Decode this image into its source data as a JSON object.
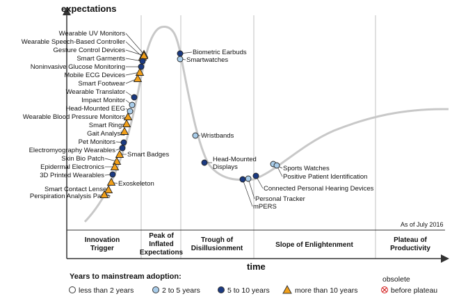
{
  "chart_data": {
    "type": "hype_cycle",
    "y_axis_label": "expectations",
    "x_axis_label": "time",
    "as_of": "As of July 2016",
    "phases": [
      {
        "lines": [
          "Innovation",
          "Trigger"
        ]
      },
      {
        "lines": [
          "Peak of",
          "Inflated",
          "Expectations"
        ]
      },
      {
        "lines": [
          "Trough of",
          "Disillusionment"
        ]
      },
      {
        "lines": [
          "Slope of Enlightenment"
        ]
      },
      {
        "lines": [
          "Plateau of",
          "Productivity"
        ]
      }
    ],
    "legend": {
      "title": "Years to mainstream adoption:",
      "items": [
        {
          "marker": "circle-white",
          "label": "less than 2 years"
        },
        {
          "marker": "circle-light",
          "label": "2 to 5 years"
        },
        {
          "marker": "circle-dark",
          "label": "5 to 10 years"
        },
        {
          "marker": "triangle",
          "label": "more than 10 years"
        },
        {
          "marker": "cross",
          "label": "obsolete",
          "label2": "before plateau"
        }
      ]
    },
    "colors": {
      "curve": "#c8c8c8",
      "circle_light": "#a9cdea",
      "circle_dark": "#1b3a82",
      "triangle": "#f2a01a",
      "cross": "#d42020",
      "axis": "#333333",
      "divider": "#c0c0c0"
    },
    "technologies": [
      {
        "name": "Wearable UV Monitors",
        "phase": "Innovation Trigger",
        "years": "more than 10 years",
        "marker": "triangle"
      },
      {
        "name": "Wearable Speech-Based Controller",
        "phase": "Innovation Trigger",
        "years": "more than 10 years",
        "marker": "triangle"
      },
      {
        "name": "Gesture Control Devices",
        "phase": "Innovation Trigger",
        "years": "more than 10 years",
        "marker": "triangle"
      },
      {
        "name": "Smart Garments",
        "phase": "Innovation Trigger",
        "years": "5 to 10 years",
        "marker": "circle-dark"
      },
      {
        "name": "Noninvasive Glucose Monitoring",
        "phase": "Innovation Trigger",
        "years": "5 to 10 years",
        "marker": "circle-dark"
      },
      {
        "name": "Mobile ECG Devices",
        "phase": "Innovation Trigger",
        "years": "more than 10 years",
        "marker": "triangle"
      },
      {
        "name": "Smart Footwear",
        "phase": "Innovation Trigger",
        "years": "more than 10 years",
        "marker": "triangle"
      },
      {
        "name": "Wearable Translator",
        "phase": "Innovation Trigger",
        "years": "5 to 10 years",
        "marker": "circle-dark"
      },
      {
        "name": "Impact Monitor",
        "phase": "Innovation Trigger",
        "years": "2 to 5 years",
        "marker": "circle-light"
      },
      {
        "name": "Head-Mounted EEG",
        "phase": "Innovation Trigger",
        "years": "2 to 5 years",
        "marker": "circle-light"
      },
      {
        "name": "Wearable Blood Pressure Monitors",
        "phase": "Innovation Trigger",
        "years": "more than 10 years",
        "marker": "triangle"
      },
      {
        "name": "Smart Rings",
        "phase": "Innovation Trigger",
        "years": "more than 10 years",
        "marker": "triangle"
      },
      {
        "name": "Gait Analysis",
        "phase": "Innovation Trigger",
        "years": "more than 10 years",
        "marker": "triangle"
      },
      {
        "name": "Pet Monitors",
        "phase": "Innovation Trigger",
        "years": "5 to 10 years",
        "marker": "circle-dark"
      },
      {
        "name": "Electromyography Wearables",
        "phase": "Innovation Trigger",
        "years": "5 to 10 years",
        "marker": "circle-dark"
      },
      {
        "name": "Smart Badges",
        "phase": "Innovation Trigger",
        "years": "more than 10 years",
        "marker": "triangle"
      },
      {
        "name": "Skin Bio Patch",
        "phase": "Innovation Trigger",
        "years": "more than 10 years",
        "marker": "triangle"
      },
      {
        "name": "Epidermal Electronics",
        "phase": "Innovation Trigger",
        "years": "more than 10 years",
        "marker": "triangle"
      },
      {
        "name": "3D Printed Wearables",
        "phase": "Innovation Trigger",
        "years": "5 to 10 years",
        "marker": "circle-dark"
      },
      {
        "name": "Exoskeleton",
        "phase": "Innovation Trigger",
        "years": "more than 10 years",
        "marker": "triangle"
      },
      {
        "name": "Smart Contact Lenses",
        "phase": "Innovation Trigger",
        "years": "more than 10 years",
        "marker": "triangle"
      },
      {
        "name": "Perspiration Analysis Patch",
        "phase": "Innovation Trigger",
        "years": "more than 10 years",
        "marker": "triangle"
      },
      {
        "name": "Biometric Earbuds",
        "phase": "Trough of Disillusionment",
        "years": "5 to 10 years",
        "marker": "circle-dark"
      },
      {
        "name": "Smartwatches",
        "phase": "Trough of Disillusionment",
        "years": "2 to 5 years",
        "marker": "circle-light"
      },
      {
        "name": "Wristbands",
        "phase": "Trough of Disillusionment",
        "years": "2 to 5 years",
        "marker": "circle-light"
      },
      {
        "name": "Head-Mounted Displays",
        "phase": "Trough of Disillusionment",
        "years": "5 to 10 years",
        "marker": "circle-dark"
      },
      {
        "name": "mPERS",
        "phase": "Trough of Disillusionment",
        "years": "5 to 10 years",
        "marker": "circle-dark"
      },
      {
        "name": "Personal Tracker",
        "phase": "Trough of Disillusionment",
        "years": "2 to 5 years",
        "marker": "circle-light"
      },
      {
        "name": "Connected Personal Hearing Devices",
        "phase": "Trough of Disillusionment",
        "years": "5 to 10 years",
        "marker": "circle-dark"
      },
      {
        "name": "Sports Watches",
        "phase": "Slope of Enlightenment",
        "years": "2 to 5 years",
        "marker": "circle-light"
      },
      {
        "name": "Positive Patient Identification",
        "phase": "Slope of Enlightenment",
        "years": "2 to 5 years",
        "marker": "circle-light"
      }
    ]
  }
}
